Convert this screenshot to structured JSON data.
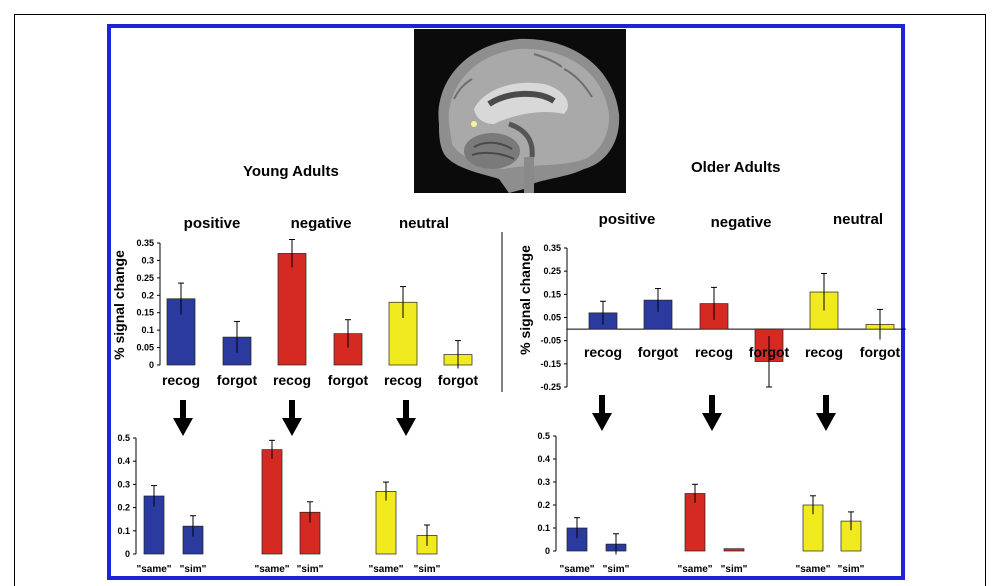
{
  "headings": {
    "young": "Young Adults",
    "older": "Older Adults"
  },
  "ylabel": "% signal change",
  "emotions": [
    "positive",
    "negative",
    "neutral"
  ],
  "colors": {
    "positive": "#2b3a9e",
    "negative": "#d42a22",
    "neutral": "#f0ea1e",
    "frame": "#1e22d8"
  },
  "chart_data": [
    {
      "id": "young-top",
      "type": "bar",
      "ylabel": "% signal change",
      "ylim": [
        0,
        0.35
      ],
      "ticks": [
        "0",
        "0.05",
        "0.1",
        "0.15",
        "0.2",
        "0.25",
        "0.3",
        "0.35"
      ],
      "bars": [
        {
          "label": "recog",
          "group": "positive",
          "value": 0.19,
          "err": 0.045
        },
        {
          "label": "forgot",
          "group": "positive",
          "value": 0.08,
          "err": 0.045
        },
        {
          "label": "recog",
          "group": "negative",
          "value": 0.32,
          "err": 0.04
        },
        {
          "label": "forgot",
          "group": "negative",
          "value": 0.09,
          "err": 0.04
        },
        {
          "label": "recog",
          "group": "neutral",
          "value": 0.18,
          "err": 0.045
        },
        {
          "label": "forgot",
          "group": "neutral",
          "value": 0.03,
          "err": 0.04
        }
      ]
    },
    {
      "id": "older-top",
      "type": "bar",
      "ylabel": "% signal change",
      "ylim": [
        -0.25,
        0.35
      ],
      "ticks": [
        "-0.25",
        "-0.15",
        "-0.05",
        "0.05",
        "0.15",
        "0.25",
        "0.35"
      ],
      "bars": [
        {
          "label": "recog",
          "group": "positive",
          "value": 0.07,
          "err": 0.05
        },
        {
          "label": "forgot",
          "group": "positive",
          "value": 0.125,
          "err": 0.05
        },
        {
          "label": "recog",
          "group": "negative",
          "value": 0.11,
          "err": 0.07
        },
        {
          "label": "forgot",
          "group": "negative",
          "value": -0.14,
          "err": 0.11
        },
        {
          "label": "recog",
          "group": "neutral",
          "value": 0.16,
          "err": 0.08
        },
        {
          "label": "forgot",
          "group": "neutral",
          "value": 0.02,
          "err": 0.065
        }
      ]
    },
    {
      "id": "young-bottom",
      "type": "bar",
      "ylim": [
        0,
        0.5
      ],
      "ticks": [
        "0",
        "0.1",
        "0.2",
        "0.3",
        "0.4",
        "0.5"
      ],
      "bars": [
        {
          "label": "\"same\"",
          "group": "positive",
          "value": 0.25,
          "err": 0.045
        },
        {
          "label": "\"sim\"",
          "group": "positive",
          "value": 0.12,
          "err": 0.045
        },
        {
          "label": "\"same\"",
          "group": "negative",
          "value": 0.45,
          "err": 0.04
        },
        {
          "label": "\"sim\"",
          "group": "negative",
          "value": 0.18,
          "err": 0.045
        },
        {
          "label": "\"same\"",
          "group": "neutral",
          "value": 0.27,
          "err": 0.04
        },
        {
          "label": "\"sim\"",
          "group": "neutral",
          "value": 0.08,
          "err": 0.045
        }
      ]
    },
    {
      "id": "older-bottom",
      "type": "bar",
      "ylim": [
        0,
        0.5
      ],
      "ticks": [
        "0",
        "0.1",
        "0.2",
        "0.3",
        "0.4",
        "0.5"
      ],
      "bars": [
        {
          "label": "\"same\"",
          "group": "positive",
          "value": 0.1,
          "err": 0.045
        },
        {
          "label": "\"sim\"",
          "group": "positive",
          "value": 0.03,
          "err": 0.045
        },
        {
          "label": "\"same\"",
          "group": "negative",
          "value": 0.25,
          "err": 0.04
        },
        {
          "label": "\"sim\"",
          "group": "negative",
          "value": 0.01,
          "err": 0.0
        },
        {
          "label": "\"same\"",
          "group": "neutral",
          "value": 0.2,
          "err": 0.04
        },
        {
          "label": "\"sim\"",
          "group": "neutral",
          "value": 0.13,
          "err": 0.04
        }
      ]
    }
  ]
}
